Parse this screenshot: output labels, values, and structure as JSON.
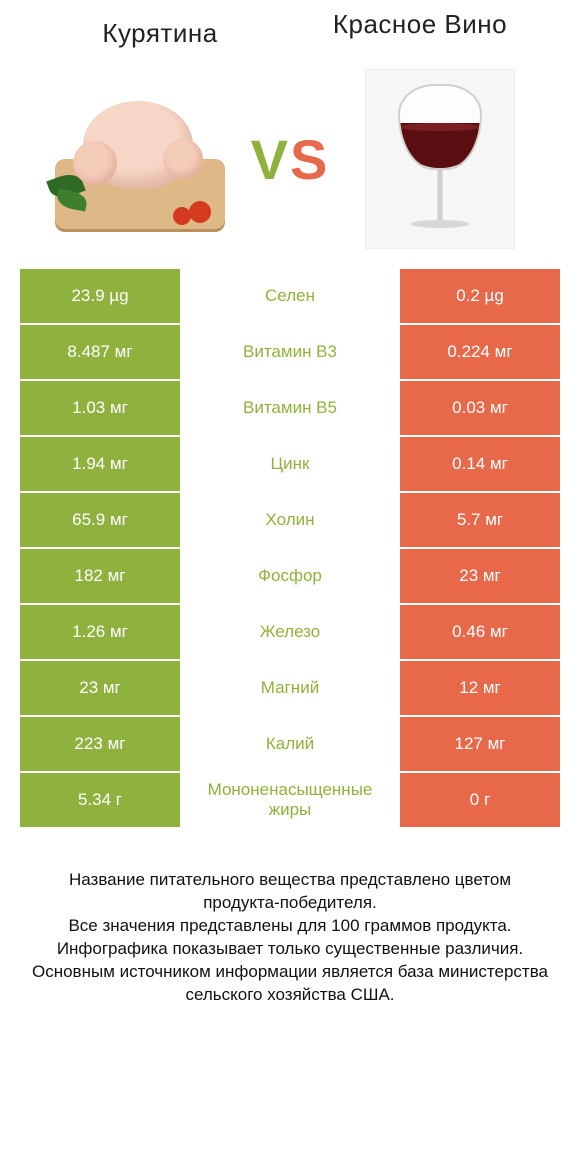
{
  "colors": {
    "left_winner": "#8fb23e",
    "right_winner": "#e7694a",
    "row_gap": "#ffffff",
    "mid_text_left": "#8fb23e",
    "mid_text_right": "#e7694a",
    "vs_v": "#8fb23e",
    "vs_s": "#e7694a"
  },
  "header": {
    "left_title": "Курятина",
    "right_title": "Красное Вино",
    "vs_v": "V",
    "vs_s": "S"
  },
  "rows": [
    {
      "name": "Селен",
      "left": "23.9 µg",
      "right": "0.2 µg",
      "winner": "left"
    },
    {
      "name": "Витамин B3",
      "left": "8.487 мг",
      "right": "0.224 мг",
      "winner": "left"
    },
    {
      "name": "Витамин B5",
      "left": "1.03 мг",
      "right": "0.03 мг",
      "winner": "left"
    },
    {
      "name": "Цинк",
      "left": "1.94 мг",
      "right": "0.14 мг",
      "winner": "left"
    },
    {
      "name": "Холин",
      "left": "65.9 мг",
      "right": "5.7 мг",
      "winner": "left"
    },
    {
      "name": "Фосфор",
      "left": "182 мг",
      "right": "23 мг",
      "winner": "left"
    },
    {
      "name": "Железо",
      "left": "1.26 мг",
      "right": "0.46 мг",
      "winner": "left"
    },
    {
      "name": "Магний",
      "left": "23 мг",
      "right": "12 мг",
      "winner": "left"
    },
    {
      "name": "Калий",
      "left": "223 мг",
      "right": "127 мг",
      "winner": "left"
    },
    {
      "name": "Мононенасыщенные жиры",
      "left": "5.34 г",
      "right": "0 г",
      "winner": "left"
    }
  ],
  "footer": {
    "line1": "Название питательного вещества представлено цветом продукта-победителя.",
    "line2": "Все значения представлены для 100 граммов продукта.",
    "line3": "Инфографика показывает только существенные различия.",
    "line4": "Основным источником информации является база министерства сельского хозяйства США."
  }
}
